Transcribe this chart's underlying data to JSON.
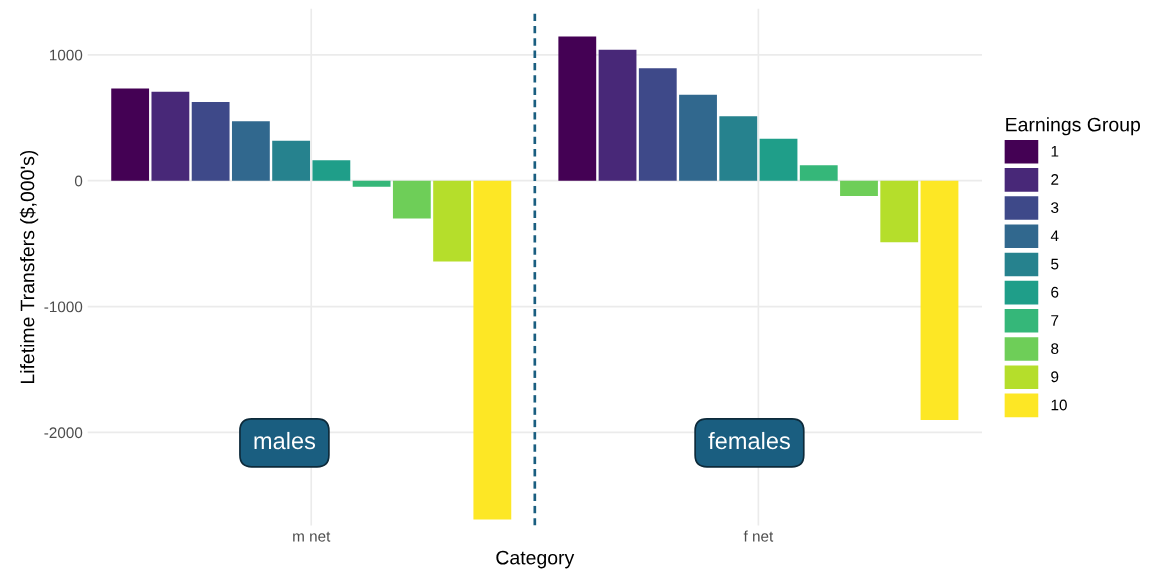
{
  "chart_data": {
    "type": "bar",
    "xlabel": "Category",
    "ylabel": "Lifetime Transfers ($,000's)",
    "legend_title": "Earnings Group",
    "categories": [
      "m net",
      "f net"
    ],
    "series": [
      {
        "name": "1",
        "color": "#440154",
        "values": [
          732,
          1146
        ]
      },
      {
        "name": "2",
        "color": "#482878",
        "values": [
          707,
          1041
        ]
      },
      {
        "name": "3",
        "color": "#3e4989",
        "values": [
          626,
          894
        ]
      },
      {
        "name": "4",
        "color": "#31688e",
        "values": [
          472,
          683
        ]
      },
      {
        "name": "5",
        "color": "#26828e",
        "values": [
          317,
          512
        ]
      },
      {
        "name": "6",
        "color": "#1f9e89",
        "values": [
          163,
          333
        ]
      },
      {
        "name": "7",
        "color": "#35b779",
        "values": [
          -49,
          122
        ]
      },
      {
        "name": "8",
        "color": "#6ece58",
        "values": [
          -301,
          -122
        ]
      },
      {
        "name": "9",
        "color": "#b5de2b",
        "values": [
          -642,
          -488
        ]
      },
      {
        "name": "10",
        "color": "#fde725",
        "values": [
          -2691,
          -1902
        ]
      }
    ],
    "ylim": [
      -2740,
      1366
    ],
    "yticks": [
      -2000,
      -1000,
      0,
      1000
    ],
    "annotations": [
      "males",
      "females"
    ],
    "grid": true,
    "legend": "right"
  }
}
